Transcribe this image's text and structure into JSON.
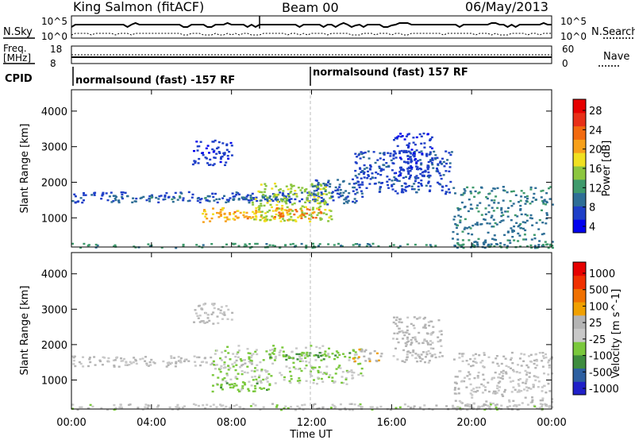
{
  "header": {
    "station": "King Salmon (fitACF)",
    "beam": "Beam 00",
    "date": "06/May/2013"
  },
  "nsky_panel": {
    "left_label": "N.Sky",
    "right_label": "N.Search",
    "left_ticks": [
      "10^5",
      "10^0"
    ],
    "right_ticks": [
      "10^5",
      "10^0"
    ]
  },
  "freq_panel": {
    "left_label": "Freq.",
    "left_unit": "[MHz]",
    "right_label": "Nave",
    "left_ticks": [
      "18",
      "8"
    ],
    "right_ticks": [
      "60",
      "0"
    ]
  },
  "cpid_panel": {
    "label": "CPID",
    "segments": [
      "normalsound (fast) -157 RF",
      "normalsound (fast) 157 RF"
    ],
    "segment_starts_hours": [
      0,
      12
    ]
  },
  "x_axis": {
    "label": "Time UT",
    "tick_labels": [
      "00:00",
      "04:00",
      "08:00",
      "12:00",
      "16:00",
      "20:00",
      "00:00"
    ]
  },
  "colors": {
    "power_scale": [
      "#0000ee",
      "#1e3fc8",
      "#2e6e96",
      "#3f9a6c",
      "#8cc63f",
      "#f0e020",
      "#f7a01a",
      "#f26a10",
      "#e83018",
      "#e60000"
    ],
    "velocity_scale": [
      "#2020c8",
      "#2d5fa0",
      "#3e8c3e",
      "#7ac83c",
      "#c8c8c8",
      "#b4b4b4",
      "#f0a000",
      "#f07000",
      "#f03000",
      "#e60000"
    ]
  },
  "chart_data": [
    {
      "type": "heatmap",
      "title": "",
      "xlabel": "Time UT",
      "ylabel": "Slant Range [km]",
      "xlim": [
        0,
        24
      ],
      "ylim": [
        180,
        4600
      ],
      "yticks": [
        1000,
        2000,
        3000,
        4000
      ],
      "colorbar": {
        "label": "Power [dB]",
        "ticks": [
          "28",
          "24",
          "20",
          "16",
          "12",
          "8",
          "4"
        ],
        "range": [
          0,
          30
        ]
      },
      "regions": [
        {
          "t": [
            0.0,
            12.5
          ],
          "range_km": [
            1450,
            1750
          ],
          "value": 5
        },
        {
          "t": [
            2.0,
            11.0
          ],
          "range_km": [
            1500,
            1650
          ],
          "value": 8
        },
        {
          "t": [
            6.0,
            8.0
          ],
          "range_km": [
            2500,
            3200
          ],
          "value": 4
        },
        {
          "t": [
            6.5,
            11.0
          ],
          "range_km": [
            900,
            1300
          ],
          "value": 18
        },
        {
          "t": [
            7.0,
            9.0
          ],
          "range_km": [
            1000,
            1200
          ],
          "value": 20
        },
        {
          "t": [
            9.0,
            13.0
          ],
          "range_km": [
            900,
            2000
          ],
          "value": 14
        },
        {
          "t": [
            10.0,
            12.5
          ],
          "range_km": [
            1000,
            1300
          ],
          "value": 22
        },
        {
          "t": [
            12.0,
            14.5
          ],
          "range_km": [
            1400,
            2100
          ],
          "value": 6
        },
        {
          "t": [
            14.0,
            19.0
          ],
          "range_km": [
            1700,
            2900
          ],
          "value": 5
        },
        {
          "t": [
            16.0,
            18.0
          ],
          "range_km": [
            2200,
            3400
          ],
          "value": 4
        },
        {
          "t": [
            19.0,
            24.0
          ],
          "range_km": [
            180,
            1900
          ],
          "value": 8
        },
        {
          "t": [
            0.0,
            24.0
          ],
          "range_km": [
            180,
            300
          ],
          "value": 10
        }
      ]
    },
    {
      "type": "heatmap",
      "title": "",
      "xlabel": "Time UT",
      "ylabel": "Slant Range [km]",
      "xlim": [
        0,
        24
      ],
      "ylim": [
        180,
        4600
      ],
      "yticks": [
        1000,
        2000,
        3000,
        4000
      ],
      "colorbar": {
        "label": "Velocity [m s^-1]",
        "ticks": [
          "1000",
          "500",
          "100",
          "25",
          "-25",
          "-100",
          "-500",
          "-1000"
        ],
        "range": [
          -1000,
          1000
        ]
      },
      "regions": [
        {
          "t": [
            0.0,
            9.0
          ],
          "range_km": [
            1400,
            1700
          ],
          "value": 0
        },
        {
          "t": [
            6.0,
            8.0
          ],
          "range_km": [
            2600,
            3200
          ],
          "value": 0
        },
        {
          "t": [
            7.0,
            14.5
          ],
          "range_km": [
            900,
            2000
          ],
          "value": -200
        },
        {
          "t": [
            7.0,
            10.0
          ],
          "range_km": [
            700,
            1000
          ],
          "value": -300
        },
        {
          "t": [
            9.5,
            14.0
          ],
          "range_km": [
            1600,
            1800
          ],
          "value": -400
        },
        {
          "t": [
            14.0,
            15.5
          ],
          "range_km": [
            1500,
            1900
          ],
          "value": 150
        },
        {
          "t": [
            16.0,
            18.5
          ],
          "range_km": [
            1500,
            2800
          ],
          "value": 50
        },
        {
          "t": [
            19.0,
            24.0
          ],
          "range_km": [
            180,
            1800
          ],
          "value": 0
        },
        {
          "t": [
            0.0,
            24.0
          ],
          "range_km": [
            180,
            350
          ],
          "value": -100
        }
      ]
    }
  ]
}
